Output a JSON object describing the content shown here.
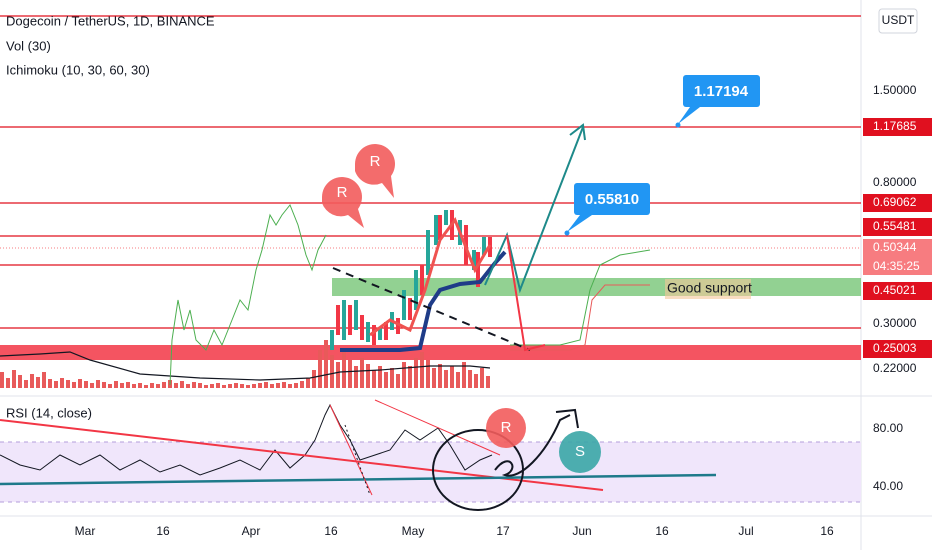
{
  "header": {
    "symbol": "Dogecoin / TetherUS, 1D, BINANCE",
    "indicators": [
      "Vol (30)",
      "Ichimoku (10, 30, 60, 30)"
    ]
  },
  "currency": "USDT",
  "price_axis": [
    "1.50000",
    "0.80000",
    "0.30000",
    "0.22000"
  ],
  "price_levels": [
    "1.17685",
    "0.69062",
    "0.55481",
    "0.50344",
    "0.45021",
    "0.25003"
  ],
  "countdown": "04:35:25",
  "callouts": [
    "1.17194",
    "0.55810"
  ],
  "annotations": {
    "support": "Good support",
    "resistance": [
      "R",
      "R",
      "R"
    ],
    "s": "S"
  },
  "rsi": {
    "label": "RSI (14, close)",
    "axis": [
      "80.00",
      "40.00"
    ]
  },
  "time_axis": [
    "Mar",
    "16",
    "Apr",
    "16",
    "May",
    "17",
    "Jun",
    "16",
    "Jul",
    "16"
  ]
}
